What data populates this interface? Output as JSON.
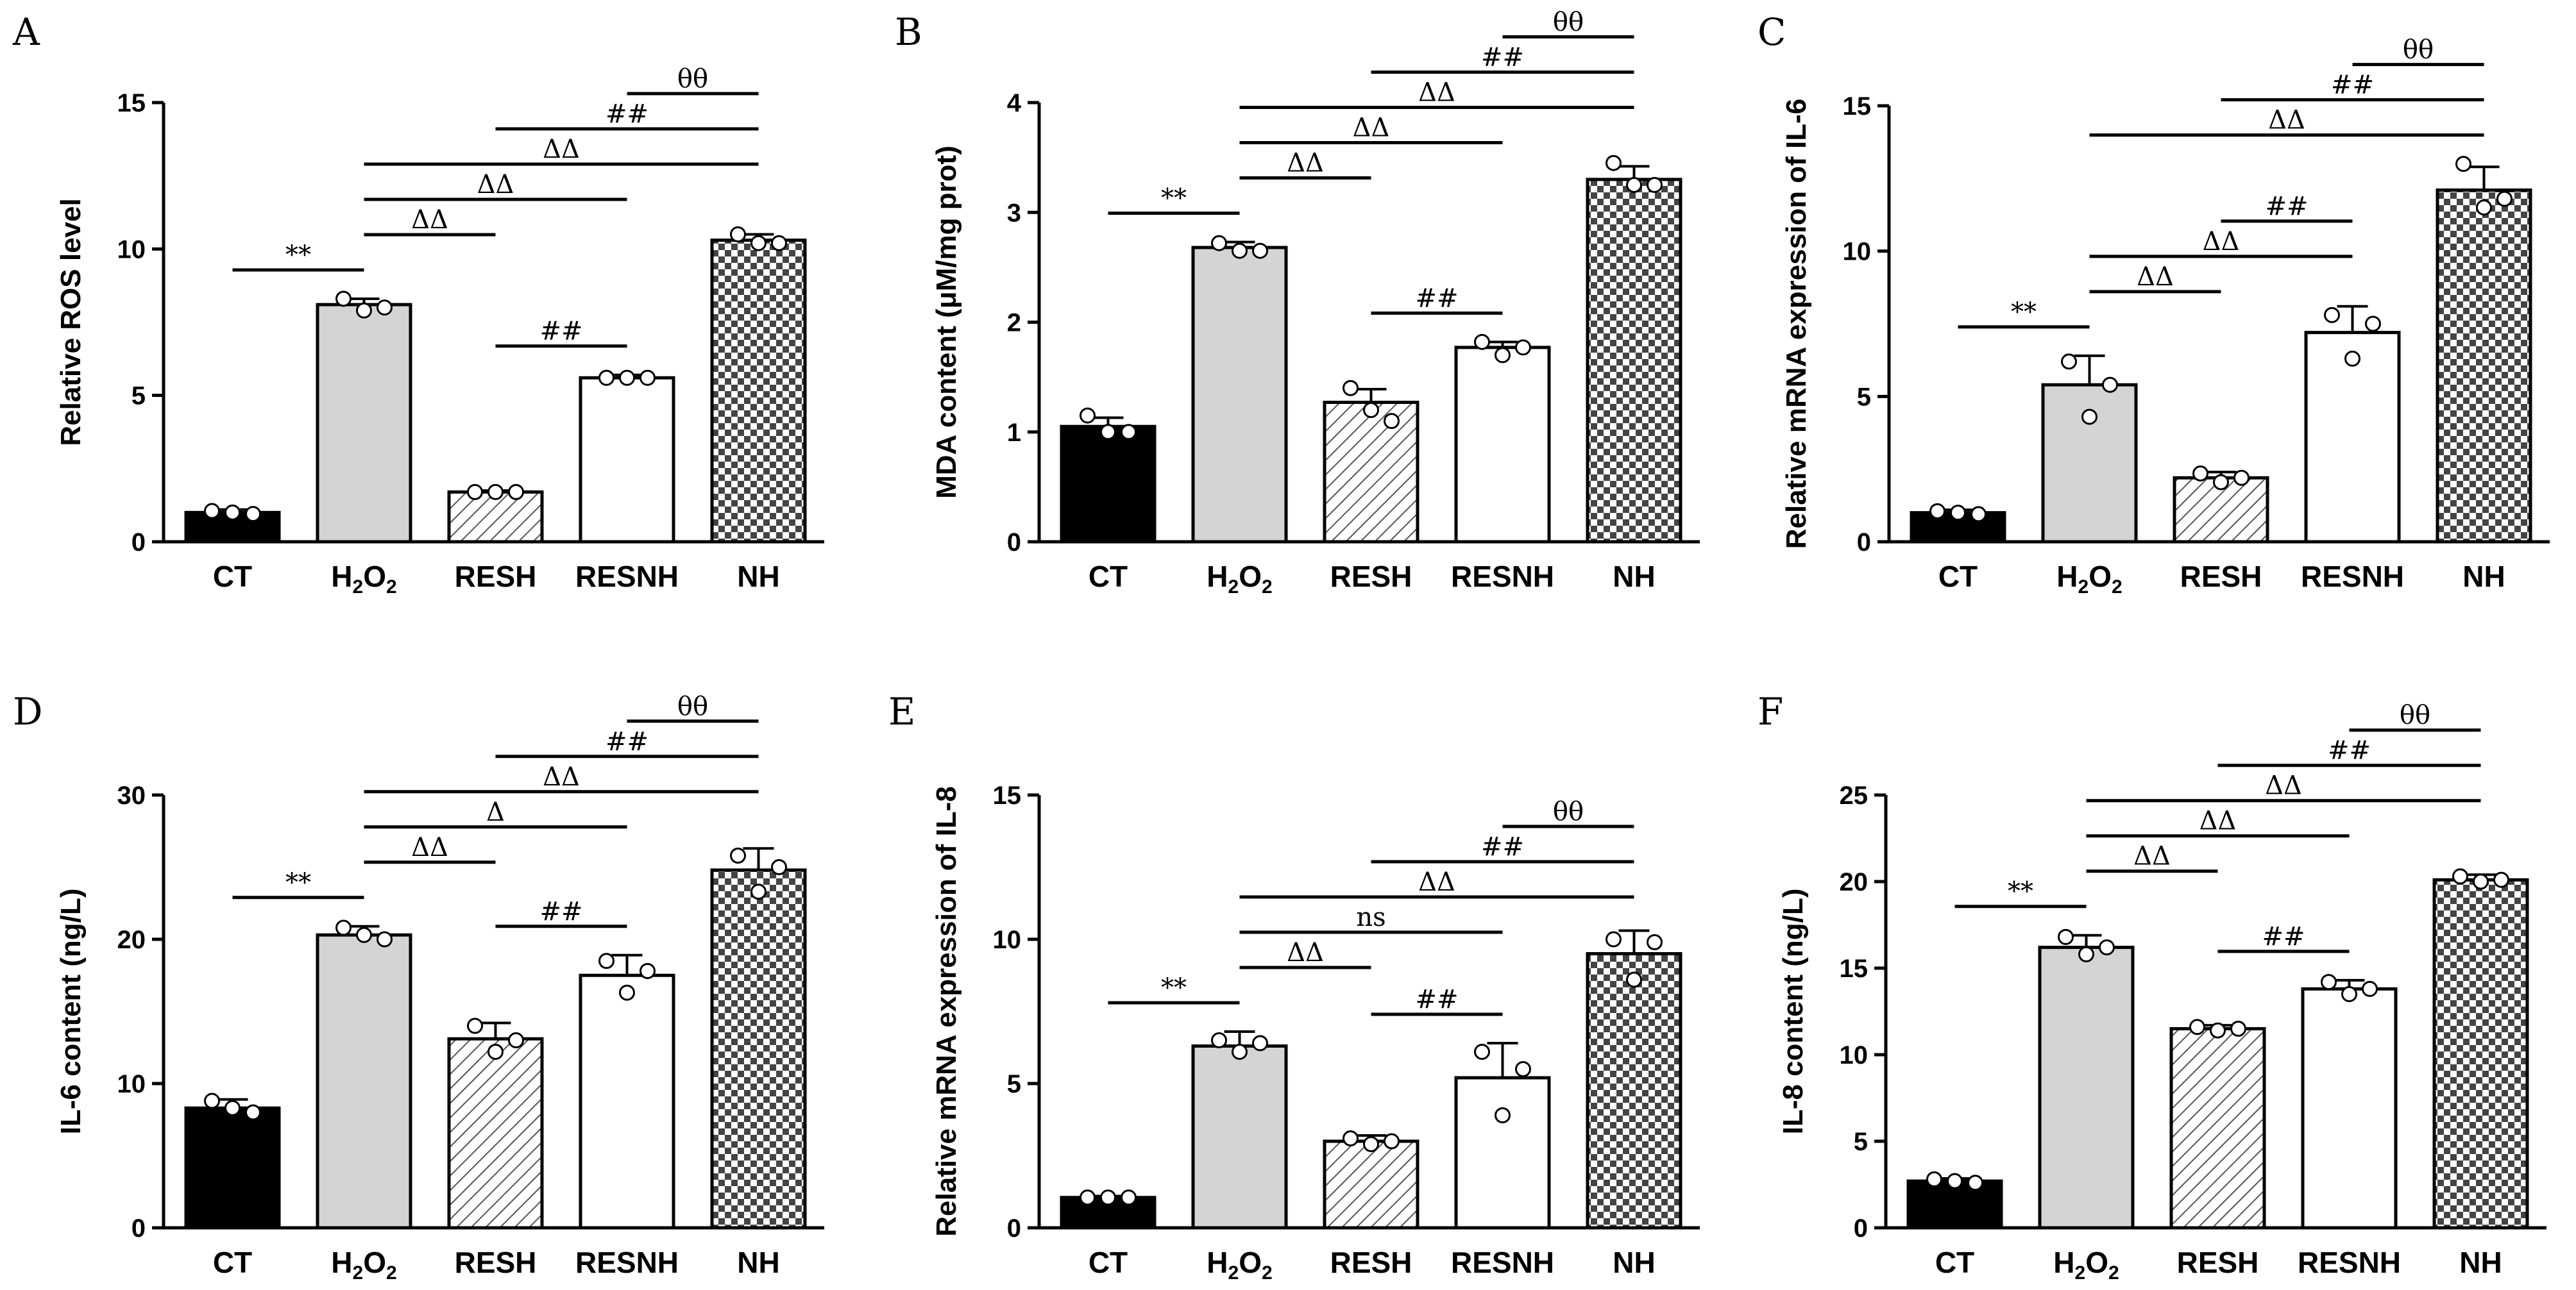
{
  "figure": {
    "layout": "2 rows x 3 columns"
  },
  "colors": {
    "axis": "#000000",
    "ct": "#000000",
    "h2o2": "#d4d4d4",
    "resh_bg": "#ffffff",
    "resnh": "#ffffff",
    "nh_dark": "#444444",
    "nh_light": "#ffffff"
  },
  "chart_data": [
    {
      "panel": "A",
      "type": "bar",
      "categories": [
        "CT",
        "H2O2",
        "RESH",
        "RESNH",
        "NH"
      ],
      "values": [
        1.0,
        8.1,
        1.7,
        5.6,
        10.3
      ],
      "errors": [
        0.1,
        0.2,
        0.05,
        0.1,
        0.2
      ],
      "points": [
        [
          1.05,
          1.0,
          0.95
        ],
        [
          8.3,
          7.9,
          8.0
        ],
        [
          1.7,
          1.7,
          1.7
        ],
        [
          5.6,
          5.6,
          5.6
        ],
        [
          10.5,
          10.2,
          10.2
        ]
      ],
      "ylabel": "Relative ROS level",
      "ylim": [
        0,
        15
      ],
      "yticks": [
        0,
        5,
        10,
        15
      ],
      "comparisons": [
        {
          "from": 0,
          "to": 1,
          "label": "**"
        },
        {
          "from": 1,
          "to": 2,
          "label": "ΔΔ"
        },
        {
          "from": 1,
          "to": 3,
          "label": "ΔΔ"
        },
        {
          "from": 1,
          "to": 4,
          "label": "ΔΔ"
        },
        {
          "from": 2,
          "to": 3,
          "label": "##"
        },
        {
          "from": 2,
          "to": 4,
          "label": "##"
        },
        {
          "from": 3,
          "to": 4,
          "label": "θθ"
        }
      ]
    },
    {
      "panel": "B",
      "type": "bar",
      "categories": [
        "CT",
        "H2O2",
        "RESH",
        "RESNH",
        "NH"
      ],
      "values": [
        1.05,
        2.68,
        1.27,
        1.77,
        3.3
      ],
      "errors": [
        0.08,
        0.05,
        0.12,
        0.05,
        0.12
      ],
      "points": [
        [
          1.15,
          1.0,
          1.0
        ],
        [
          2.72,
          2.65,
          2.65
        ],
        [
          1.4,
          1.2,
          1.1
        ],
        [
          1.82,
          1.7,
          1.77
        ],
        [
          3.45,
          3.25,
          3.25
        ]
      ],
      "ylabel": "MDA content (μM/mg prot)",
      "ylim": [
        0,
        4
      ],
      "yticks": [
        0,
        1,
        2,
        3,
        4
      ],
      "comparisons": [
        {
          "from": 0,
          "to": 1,
          "label": "**"
        },
        {
          "from": 1,
          "to": 2,
          "label": "ΔΔ"
        },
        {
          "from": 1,
          "to": 3,
          "label": "ΔΔ"
        },
        {
          "from": 1,
          "to": 4,
          "label": "ΔΔ"
        },
        {
          "from": 2,
          "to": 3,
          "label": "##"
        },
        {
          "from": 2,
          "to": 4,
          "label": "##"
        },
        {
          "from": 3,
          "to": 4,
          "label": "θθ"
        }
      ]
    },
    {
      "panel": "C",
      "type": "bar",
      "categories": [
        "CT",
        "H2O2",
        "RESH",
        "RESNH",
        "NH"
      ],
      "values": [
        1.0,
        5.4,
        2.2,
        7.2,
        12.1
      ],
      "errors": [
        0.1,
        1.0,
        0.2,
        0.9,
        0.8
      ],
      "points": [
        [
          1.05,
          1.0,
          0.95
        ],
        [
          6.2,
          4.3,
          5.4
        ],
        [
          2.35,
          2.05,
          2.2
        ],
        [
          7.8,
          6.3,
          7.5
        ],
        [
          13.0,
          11.5,
          11.8
        ]
      ],
      "ylabel": "Relative mRNA expression of IL-6",
      "ylim": [
        0,
        15
      ],
      "yticks": [
        0,
        5,
        10,
        15
      ],
      "comparisons": [
        {
          "from": 0,
          "to": 1,
          "label": "**"
        },
        {
          "from": 1,
          "to": 2,
          "label": "ΔΔ"
        },
        {
          "from": 1,
          "to": 3,
          "label": "ΔΔ"
        },
        {
          "from": 1,
          "to": 4,
          "label": "ΔΔ"
        },
        {
          "from": 2,
          "to": 3,
          "label": "##"
        },
        {
          "from": 2,
          "to": 4,
          "label": "##"
        },
        {
          "from": 3,
          "to": 4,
          "label": "θθ"
        }
      ]
    },
    {
      "panel": "D",
      "type": "bar",
      "categories": [
        "CT",
        "H2O2",
        "RESH",
        "RESNH",
        "NH"
      ],
      "values": [
        8.3,
        20.3,
        13.1,
        17.5,
        24.8
      ],
      "errors": [
        0.6,
        0.6,
        1.1,
        1.4,
        1.5
      ],
      "points": [
        [
          8.8,
          8.3,
          8.0
        ],
        [
          20.8,
          20.3,
          20.0
        ],
        [
          14.0,
          12.2,
          13.0
        ],
        [
          18.5,
          16.3,
          17.8
        ],
        [
          25.8,
          23.3,
          25.0
        ]
      ],
      "ylabel": "IL-6 content (ng/L)",
      "ylim": [
        0,
        30
      ],
      "yticks": [
        0,
        10,
        20,
        30
      ],
      "comparisons": [
        {
          "from": 0,
          "to": 1,
          "label": "**"
        },
        {
          "from": 1,
          "to": 2,
          "label": "ΔΔ"
        },
        {
          "from": 1,
          "to": 3,
          "label": "Δ"
        },
        {
          "from": 1,
          "to": 4,
          "label": "ΔΔ"
        },
        {
          "from": 2,
          "to": 3,
          "label": "##"
        },
        {
          "from": 2,
          "to": 4,
          "label": "##"
        },
        {
          "from": 3,
          "to": 4,
          "label": "θθ"
        }
      ]
    },
    {
      "panel": "E",
      "type": "bar",
      "categories": [
        "CT",
        "H2O2",
        "RESH",
        "RESNH",
        "NH"
      ],
      "values": [
        1.05,
        6.3,
        3.0,
        5.2,
        9.5
      ],
      "errors": [
        0.05,
        0.5,
        0.2,
        1.2,
        0.8
      ],
      "points": [
        [
          1.05,
          1.05,
          1.05
        ],
        [
          6.5,
          6.1,
          6.4
        ],
        [
          3.1,
          2.9,
          3.0
        ],
        [
          6.1,
          3.9,
          5.5
        ],
        [
          10.0,
          8.6,
          9.9
        ]
      ],
      "ylabel": "Relative mRNA expression of IL-8",
      "ylim": [
        0,
        15
      ],
      "yticks": [
        0,
        5,
        10,
        15
      ],
      "comparisons": [
        {
          "from": 0,
          "to": 1,
          "label": "**"
        },
        {
          "from": 1,
          "to": 2,
          "label": "ΔΔ"
        },
        {
          "from": 1,
          "to": 3,
          "label": "ns"
        },
        {
          "from": 1,
          "to": 4,
          "label": "ΔΔ"
        },
        {
          "from": 2,
          "to": 3,
          "label": "##"
        },
        {
          "from": 2,
          "to": 4,
          "label": "##"
        },
        {
          "from": 3,
          "to": 4,
          "label": "θθ"
        }
      ]
    },
    {
      "panel": "F",
      "type": "bar",
      "categories": [
        "CT",
        "H2O2",
        "RESH",
        "RESNH",
        "NH"
      ],
      "values": [
        2.7,
        16.2,
        11.5,
        13.8,
        20.1
      ],
      "errors": [
        0.15,
        0.7,
        0.2,
        0.5,
        0.3
      ],
      "points": [
        [
          2.8,
          2.7,
          2.6
        ],
        [
          16.8,
          15.8,
          16.2
        ],
        [
          11.6,
          11.4,
          11.5
        ],
        [
          14.2,
          13.5,
          13.8
        ],
        [
          20.3,
          20.0,
          20.1
        ]
      ],
      "ylabel": "IL-8 content (ng/L)",
      "ylim": [
        0,
        25
      ],
      "yticks": [
        0,
        5,
        10,
        15,
        20,
        25
      ],
      "comparisons": [
        {
          "from": 0,
          "to": 1,
          "label": "**"
        },
        {
          "from": 1,
          "to": 2,
          "label": "ΔΔ"
        },
        {
          "from": 1,
          "to": 3,
          "label": "ΔΔ"
        },
        {
          "from": 1,
          "to": 4,
          "label": "ΔΔ"
        },
        {
          "from": 2,
          "to": 3,
          "label": "##"
        },
        {
          "from": 2,
          "to": 4,
          "label": "##"
        },
        {
          "from": 3,
          "to": 4,
          "label": "θθ"
        }
      ]
    }
  ]
}
